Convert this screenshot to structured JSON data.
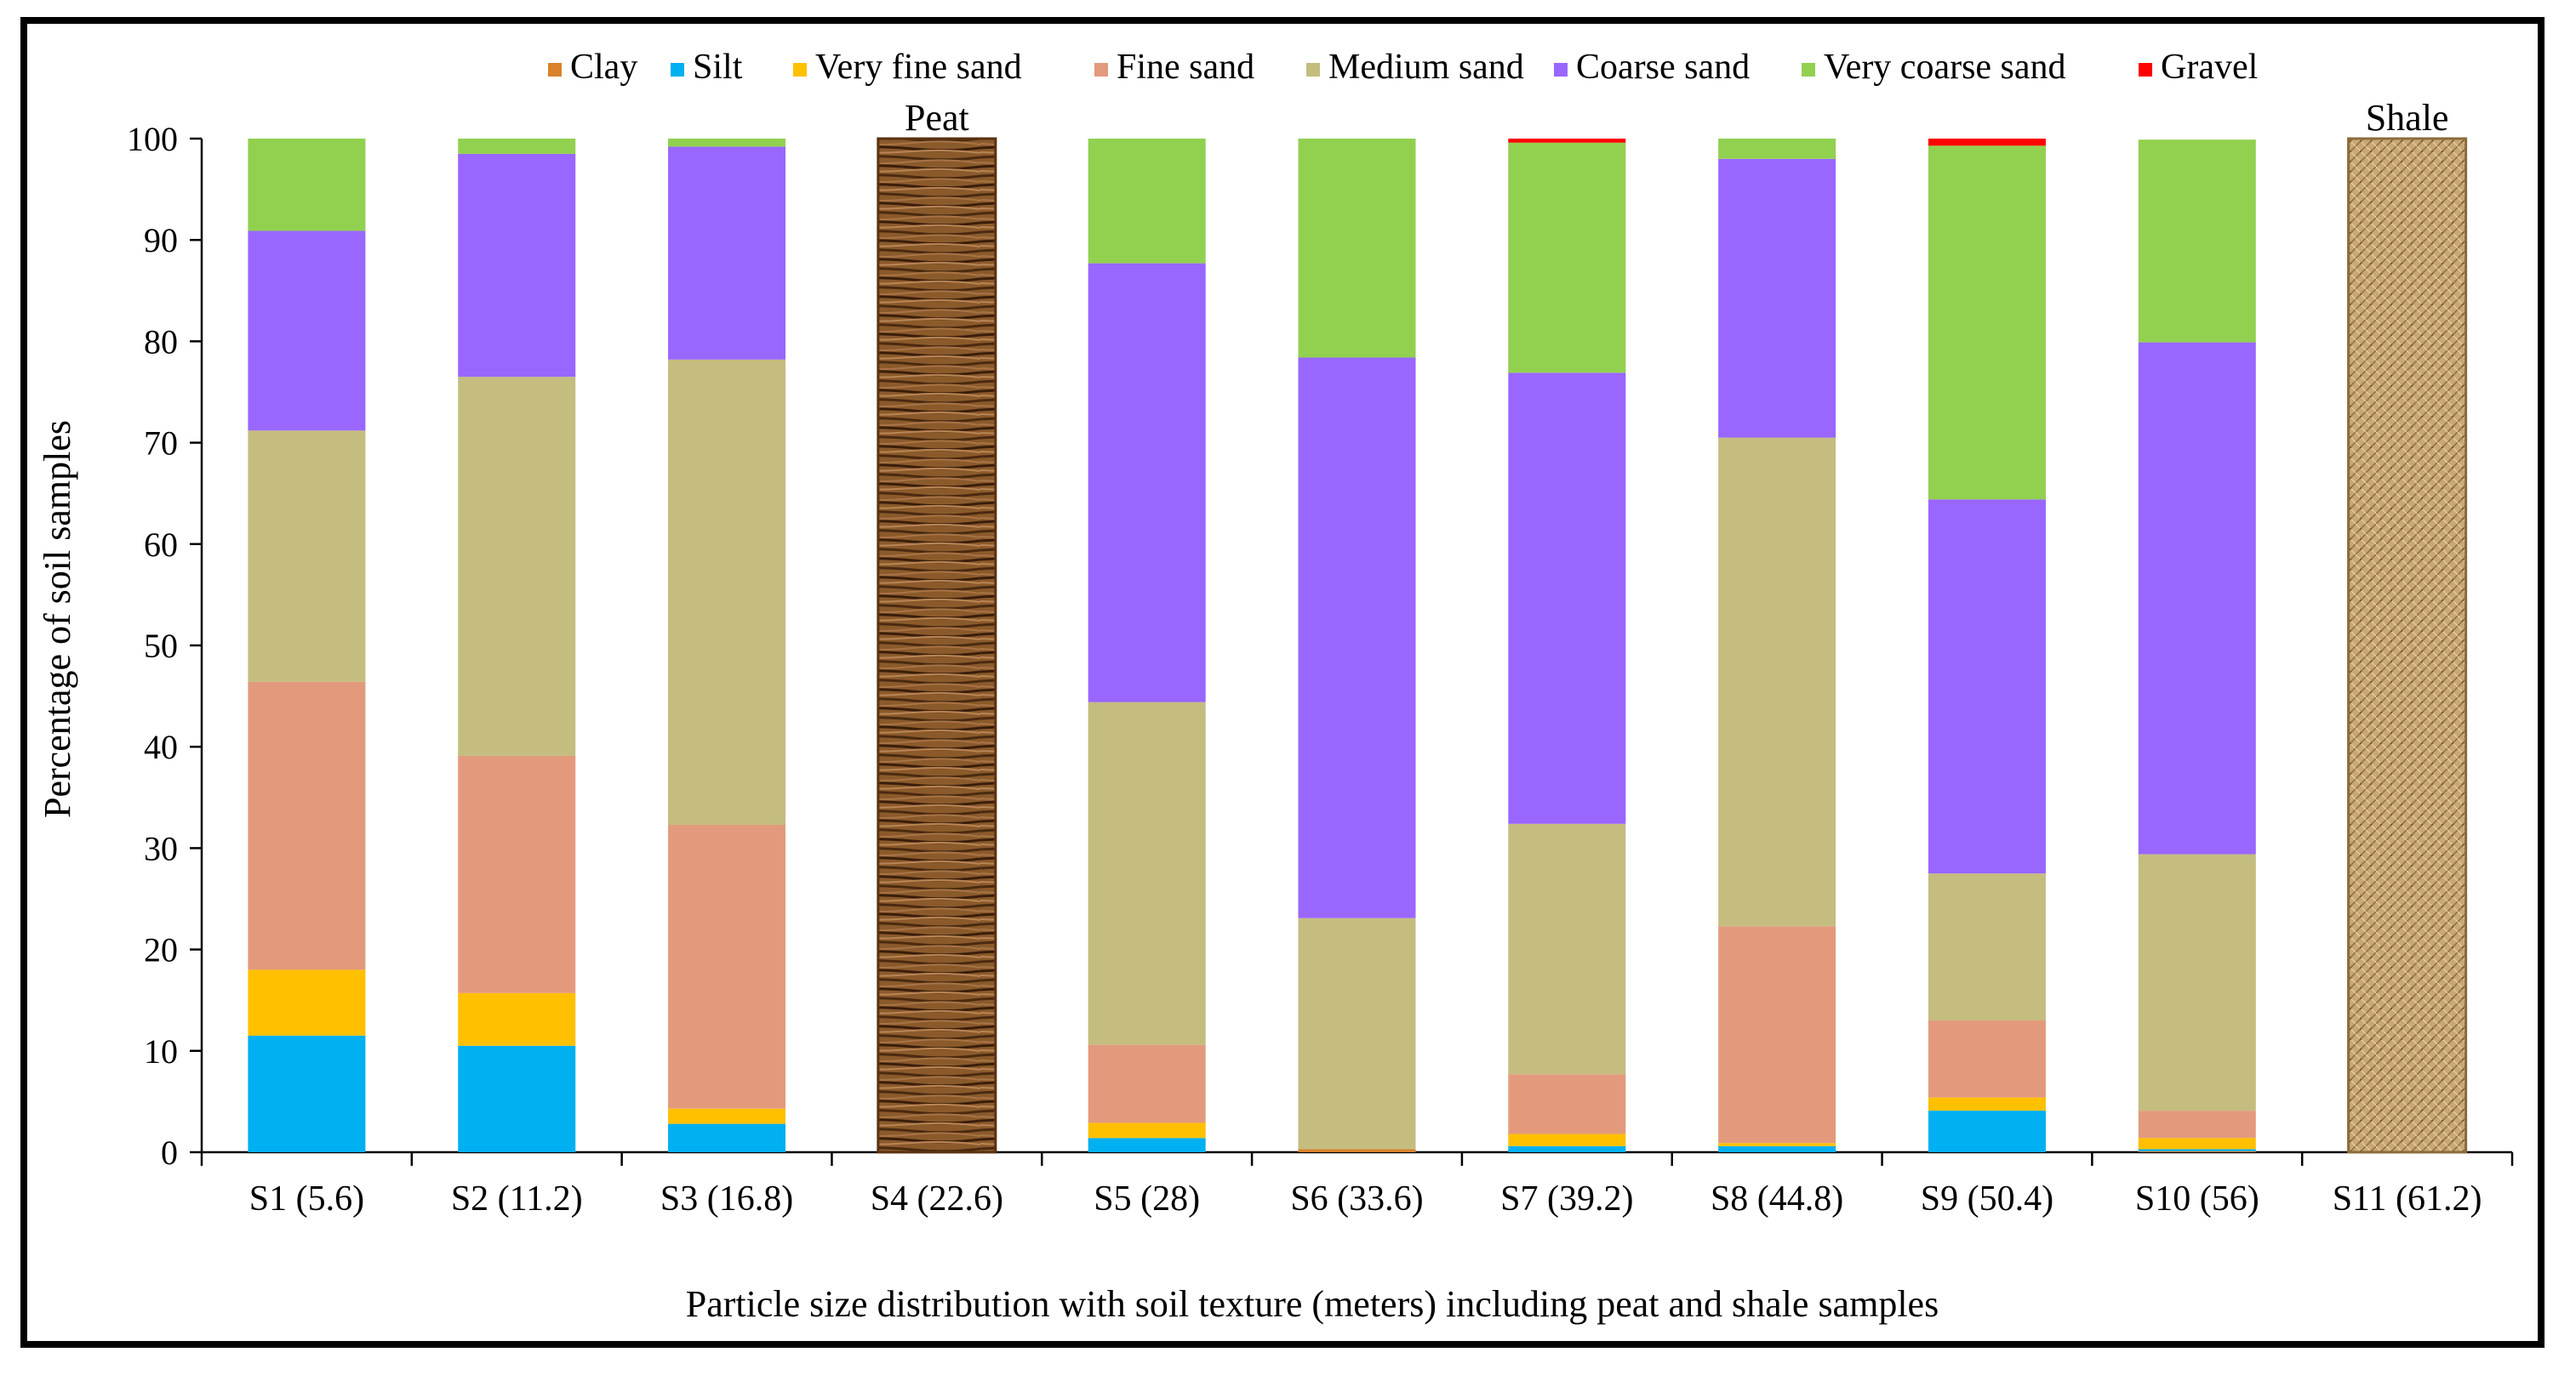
{
  "chart_data": {
    "type": "bar",
    "stacked": true,
    "title": "",
    "xlabel": "Particle size distribution with soil texture (meters) including peat and shale samples",
    "ylabel": "Percentage of soil samples",
    "ylim": [
      0,
      100
    ],
    "yticks": [
      0,
      10,
      20,
      30,
      40,
      50,
      60,
      70,
      80,
      90,
      100
    ],
    "grid": false,
    "legend_position": "top",
    "categories": [
      "S1 (5.6)",
      "S2 (11.2)",
      "S3 (16.8)",
      "S4 (22.6)",
      "S5 (28)",
      "S6 (33.6)",
      "S7 (39.2)",
      "S8 (44.8)",
      "S9 (50.4)",
      "S10 (56)",
      "S11 (61.2)"
    ],
    "special_bars": [
      {
        "category_index": 3,
        "label": "Peat",
        "value": 100,
        "pattern": "peat"
      },
      {
        "category_index": 10,
        "label": "Shale",
        "value": 100,
        "pattern": "shale"
      }
    ],
    "series": [
      {
        "name": "Clay",
        "color": "#D9822B",
        "values": [
          0,
          0,
          0,
          null,
          0,
          0.3,
          0,
          0,
          0,
          0.1,
          null
        ]
      },
      {
        "name": "Silt",
        "color": "#00B0F0",
        "values": [
          11.5,
          10.5,
          2.8,
          null,
          1.4,
          0,
          0.6,
          0.6,
          4.1,
          0.2,
          null
        ]
      },
      {
        "name": "Very fine sand",
        "color": "#FFC000",
        "values": [
          6.5,
          5.2,
          1.5,
          null,
          1.5,
          0,
          1.2,
          0.3,
          1.3,
          1.1,
          null
        ]
      },
      {
        "name": "Fine sand",
        "color": "#E39A7C",
        "values": [
          28.4,
          23.4,
          28.0,
          null,
          7.7,
          0,
          5.9,
          21.4,
          7.6,
          2.7,
          null
        ]
      },
      {
        "name": "Medium sand",
        "color": "#C4BD7F",
        "values": [
          24.8,
          37.4,
          45.9,
          null,
          33.8,
          22.8,
          24.7,
          48.2,
          14.5,
          25.3,
          null
        ]
      },
      {
        "name": "Coarse sand",
        "color": "#9966FF",
        "values": [
          19.7,
          22.0,
          21.0,
          null,
          43.3,
          55.3,
          44.5,
          27.5,
          36.9,
          50.5,
          null
        ]
      },
      {
        "name": "Very coarse sand",
        "color": "#92D050",
        "values": [
          9.1,
          1.5,
          0.8,
          null,
          12.3,
          21.6,
          22.7,
          2.0,
          34.9,
          20.0,
          null
        ]
      },
      {
        "name": "Gravel",
        "color": "#FF0000",
        "values": [
          0,
          0,
          0,
          null,
          0,
          0,
          0.4,
          0,
          0.7,
          0,
          null
        ]
      }
    ]
  }
}
